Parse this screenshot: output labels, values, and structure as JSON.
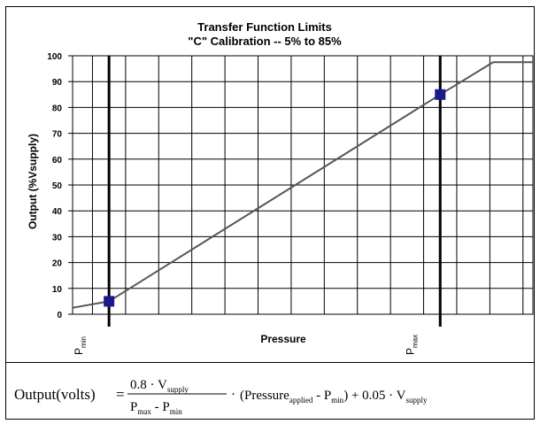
{
  "chart_data": {
    "type": "line",
    "title_line1": "Transfer Function Limits",
    "title_line2": "\"C\" Calibration -- 5% to 85%",
    "xlabel": "Pressure",
    "ylabel": "Output (%Vsupply)",
    "ylim": [
      0,
      100
    ],
    "yticks": [
      "0",
      "10",
      "20",
      "30",
      "40",
      "50",
      "60",
      "70",
      "80",
      "90",
      "100"
    ],
    "xlim": [
      -0.11,
      1.28
    ],
    "x_markers": [
      {
        "label_main": "P",
        "label_sub": "min",
        "x": 0
      },
      {
        "label_main": "P",
        "label_sub": "max",
        "x": 1
      }
    ],
    "grid": true,
    "series": [
      {
        "x": [
          -0.11,
          0.0,
          1.0,
          1.16,
          1.28
        ],
        "y": [
          2.5,
          5,
          85,
          97.5,
          97.5
        ]
      }
    ],
    "markers": [
      {
        "x": 0,
        "y": 5
      },
      {
        "x": 1,
        "y": 85
      }
    ],
    "colors": {
      "line": "#555555",
      "marker": "#1a1a8c",
      "grid": "#000000"
    }
  },
  "formula": {
    "lhs": "Output(volts)",
    "eq": "=",
    "num": "0.8 · V",
    "num_sub": "supply",
    "den_a": "P",
    "den_a_sub": "max",
    "den_mid": " - ",
    "den_b": "P",
    "den_b_sub": "min",
    "dot": "·",
    "paren_open": "(Pressure",
    "paren_sub": "applied",
    "paren_mid": " - P",
    "paren_mid_sub": "min",
    "paren_close": ") + 0.05 · V",
    "tail_sub": "supply"
  }
}
